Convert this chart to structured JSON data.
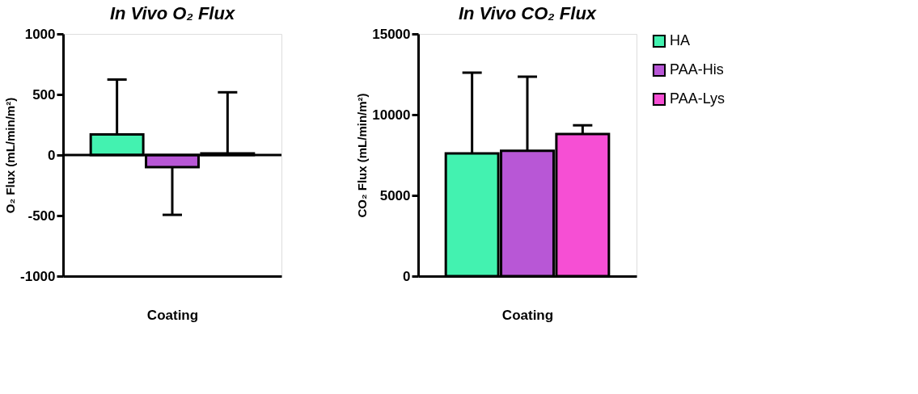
{
  "chart_data": [
    {
      "type": "bar",
      "title": "In Vivo O₂ Flux",
      "xlabel": "Coating",
      "ylabel": "O₂ Flux (mL/min/m²)",
      "categories": [
        null
      ],
      "ylim": [
        -1000,
        1000
      ],
      "yticks": [
        -1000,
        -500,
        0,
        500,
        1000
      ],
      "legend": "right",
      "tick_labels": "y",
      "series": [
        {
          "name": "HA",
          "color": "#43f2b0",
          "values": [
            170
          ],
          "errors": [
            [
              170,
              623
            ]
          ]
        },
        {
          "name": "PAA-His",
          "color": "#b857d6",
          "values": [
            -100
          ],
          "errors": [
            [
              -494,
              -100
            ]
          ]
        },
        {
          "name": "PAA-Lys",
          "color": "#f64fd4",
          "values": [
            14
          ],
          "errors": [
            [
              14,
              518
            ]
          ]
        }
      ]
    },
    {
      "type": "bar",
      "title": "In Vivo CO₂ Flux",
      "xlabel": "Coating",
      "ylabel": "CO₂ Flux (mL/min/m²)",
      "categories": [
        null
      ],
      "ylim": [
        0,
        15000
      ],
      "yticks": [
        0,
        5000,
        10000,
        15000
      ],
      "legend": "right",
      "tick_labels": "y",
      "series": [
        {
          "name": "HA",
          "color": "#43f2b0",
          "values": [
            7600
          ],
          "errors": [
            [
              7600,
              12600
            ]
          ]
        },
        {
          "name": "PAA-His",
          "color": "#b857d6",
          "values": [
            7760
          ],
          "errors": [
            [
              7760,
              12350
            ]
          ]
        },
        {
          "name": "PAA-Lys",
          "color": "#f64fd4",
          "values": [
            8800
          ],
          "errors": [
            [
              8800,
              9340
            ]
          ]
        }
      ]
    }
  ]
}
